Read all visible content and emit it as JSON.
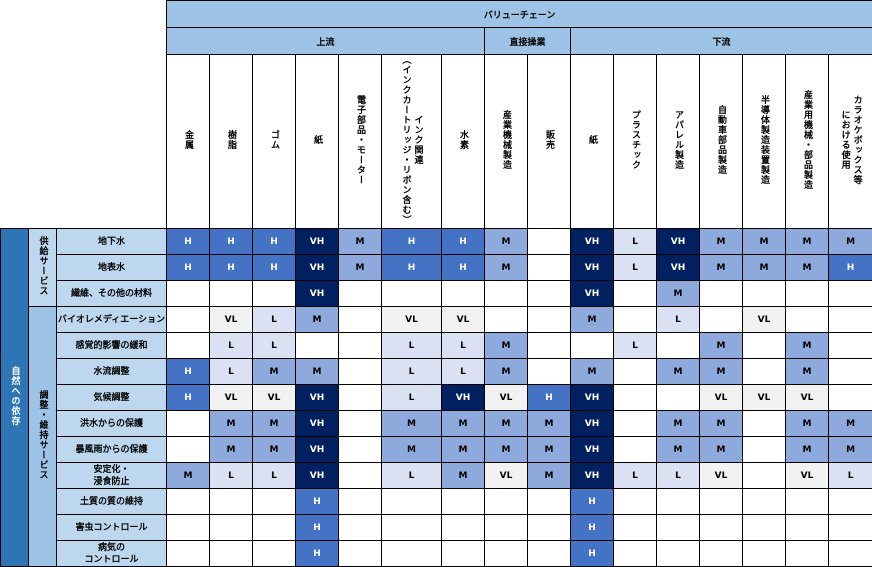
{
  "header": {
    "value_chain": "バリューチェーン",
    "groups": [
      {
        "label": "上流",
        "span": 7
      },
      {
        "label": "直接操業",
        "span": 2
      },
      {
        "label": "下流",
        "span": 7
      }
    ],
    "columns": [
      "金属",
      "樹脂",
      "ゴム",
      "紙",
      "電子部品・モーター",
      "インク関連\n（インクカートリッジ・リボン含む）",
      "水素",
      "産業機械製造",
      "販売",
      "紙",
      "プラスチック",
      "アパレル製造",
      "自動車部品製造",
      "半導体製造装置製造",
      "産業用機械・部品製造",
      "カラオケボックス等\nにおける使用"
    ]
  },
  "dependency_label": "自然への依存",
  "categories": [
    {
      "label": "供給サービス",
      "rows": 3
    },
    {
      "label": "調整・維持サービス",
      "rows": 10
    }
  ],
  "levels": {
    "VH": {
      "bg": "#002060",
      "fg": "#ffffff"
    },
    "H": {
      "bg": "#4472C4",
      "fg": "#ffffff"
    },
    "M": {
      "bg": "#8EA9DB",
      "fg": "#000000"
    },
    "L": {
      "bg": "#D9E1F2",
      "fg": "#000000"
    },
    "VL": {
      "bg": "#F2F2F2",
      "fg": "#000000"
    }
  },
  "rows": [
    {
      "label": "地下水",
      "values": [
        "H",
        "H",
        "H",
        "VH",
        "M",
        "H",
        "H",
        "M",
        "",
        "VH",
        "L",
        "VH",
        "M",
        "M",
        "M",
        "M"
      ]
    },
    {
      "label": "地表水",
      "values": [
        "H",
        "H",
        "H",
        "VH",
        "M",
        "H",
        "H",
        "M",
        "",
        "VH",
        "L",
        "VH",
        "M",
        "M",
        "M",
        "H"
      ]
    },
    {
      "label": "繊維、その他の材料",
      "values": [
        "",
        "",
        "",
        "VH",
        "",
        "",
        "",
        "",
        "",
        "VH",
        "",
        "M",
        "",
        "",
        "",
        ""
      ]
    },
    {
      "label": "バイオレメディエーション",
      "values": [
        "",
        "VL",
        "L",
        "M",
        "",
        "VL",
        "VL",
        "",
        "",
        "M",
        "",
        "L",
        "",
        "VL",
        "",
        ""
      ]
    },
    {
      "label": "感覚的影響の緩和",
      "values": [
        "",
        "L",
        "L",
        "",
        "",
        "L",
        "L",
        "M",
        "",
        "",
        "L",
        "",
        "M",
        "",
        "M",
        ""
      ]
    },
    {
      "label": "水流調整",
      "values": [
        "H",
        "L",
        "M",
        "M",
        "",
        "L",
        "L",
        "M",
        "",
        "M",
        "",
        "M",
        "M",
        "",
        "M",
        ""
      ]
    },
    {
      "label": "気候調整",
      "values": [
        "H",
        "VL",
        "VL",
        "VH",
        "",
        "L",
        "VH",
        "VL",
        "H",
        "VH",
        "",
        "",
        "VL",
        "VL",
        "VL",
        ""
      ]
    },
    {
      "label": "洪水からの保護",
      "values": [
        "",
        "M",
        "M",
        "VH",
        "",
        "M",
        "M",
        "M",
        "M",
        "VH",
        "",
        "M",
        "M",
        "",
        "M",
        "M"
      ]
    },
    {
      "label": "暴風雨からの保護",
      "values": [
        "",
        "M",
        "M",
        "VH",
        "",
        "M",
        "M",
        "M",
        "M",
        "VH",
        "",
        "M",
        "M",
        "",
        "M",
        "M"
      ]
    },
    {
      "label": "安定化・\n浸食防止",
      "values": [
        "M",
        "L",
        "L",
        "VH",
        "",
        "L",
        "M",
        "VL",
        "M",
        "VH",
        "L",
        "L",
        "VL",
        "",
        "VL",
        "L"
      ]
    },
    {
      "label": "土質の質の維持",
      "values": [
        "",
        "",
        "",
        "H",
        "",
        "",
        "",
        "",
        "",
        "H",
        "",
        "",
        "",
        "",
        "",
        ""
      ]
    },
    {
      "label": "害虫コントロール",
      "values": [
        "",
        "",
        "",
        "H",
        "",
        "",
        "",
        "",
        "",
        "H",
        "",
        "",
        "",
        "",
        "",
        ""
      ]
    },
    {
      "label": "病気の\nコントロール",
      "values": [
        "",
        "",
        "",
        "H",
        "",
        "",
        "",
        "",
        "",
        "H",
        "",
        "",
        "",
        "",
        "",
        ""
      ]
    }
  ]
}
